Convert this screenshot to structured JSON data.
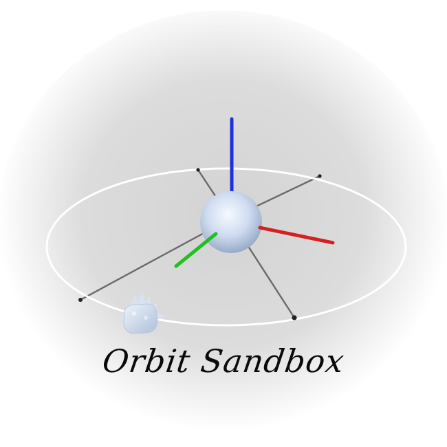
{
  "title": "Orbit Sandbox",
  "colors": {
    "background_center": "#d3d3d3",
    "background_edge": "#ffffff",
    "orbit_ring": "#ffffff",
    "spoke": "#6a6a6a",
    "axis_x": "#d42020",
    "axis_y": "#20c020",
    "axis_z": "#1f2fe0",
    "planet_highlight": "#f4f8ff",
    "planet_shadow": "#9fb2cc",
    "satellite": "#c9d5e8",
    "title_text": "#0a0a0a"
  },
  "icons": {
    "central_body": "sphere-icon",
    "orbiting_body": "spiked-cube-icon"
  }
}
